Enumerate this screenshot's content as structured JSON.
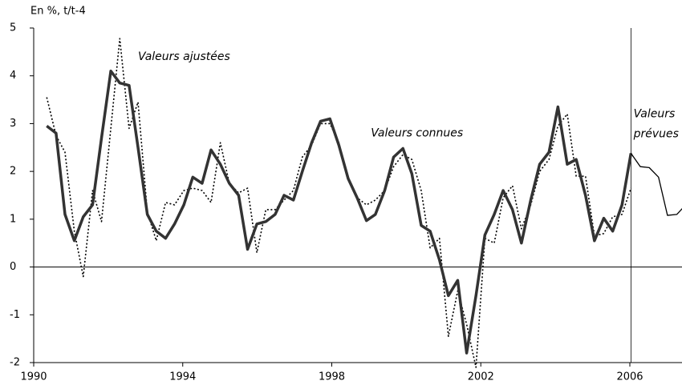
{
  "chart_data": {
    "type": "line",
    "y_label": "En %, t/t-4",
    "xlim": [
      1990,
      2007.4
    ],
    "xticks": [
      1990,
      1994,
      1998,
      2002,
      2006
    ],
    "ylim": [
      -2,
      5
    ],
    "yticks": [
      -2,
      -1,
      0,
      1,
      2,
      3,
      4,
      5
    ],
    "divider_x": 2006.03,
    "x": [
      1990.35,
      1990.6,
      1990.84,
      1991.09,
      1991.33,
      1991.58,
      1991.82,
      1992.07,
      1992.31,
      1992.56,
      1992.8,
      1993.05,
      1993.29,
      1993.54,
      1993.78,
      1994.03,
      1994.27,
      1994.52,
      1994.76,
      1995.01,
      1995.25,
      1995.5,
      1995.74,
      1995.99,
      1996.23,
      1996.48,
      1996.72,
      1996.97,
      1997.21,
      1997.46,
      1997.7,
      1997.95,
      1998.19,
      1998.44,
      1998.68,
      1998.93,
      1999.17,
      1999.42,
      1999.66,
      1999.91,
      2000.15,
      2000.4,
      2000.64,
      2000.89,
      2001.13,
      2001.38,
      2001.62,
      2001.87,
      2002.11,
      2002.36,
      2002.6,
      2002.85,
      2003.09,
      2003.34,
      2003.58,
      2003.83,
      2004.07,
      2004.32,
      2004.56,
      2004.81,
      2005.05,
      2005.3,
      2005.54,
      2005.79,
      2006.03
    ],
    "series": [
      {
        "color": "#000000",
        "style": "dotted",
        "width": 1.6,
        "values": [
          3.55,
          2.75,
          2.4,
          0.75,
          -0.2,
          1.6,
          0.95,
          2.9,
          4.78,
          2.9,
          3.45,
          1.15,
          0.55,
          1.35,
          1.3,
          1.6,
          1.65,
          1.6,
          1.35,
          2.6,
          1.75,
          1.55,
          1.65,
          0.3,
          1.2,
          1.2,
          1.4,
          1.6,
          2.3,
          2.55,
          3.0,
          3.0,
          2.6,
          1.85,
          1.45,
          1.3,
          1.4,
          1.6,
          2.1,
          2.35,
          2.25,
          1.6,
          0.4,
          0.6,
          -1.45,
          -0.5,
          -1.2,
          -2.1,
          0.6,
          0.5,
          1.45,
          1.7,
          0.8,
          1.3,
          2.0,
          2.25,
          2.95,
          3.2,
          1.9,
          1.9,
          0.65,
          0.7,
          1.05,
          1.1,
          1.65
        ]
      },
      {
        "color": "#333333",
        "style": "solid",
        "width": 3.5,
        "values": [
          2.95,
          2.8,
          1.1,
          0.55,
          1.05,
          1.3,
          2.7,
          4.1,
          3.85,
          3.8,
          2.5,
          1.1,
          0.75,
          0.6,
          0.9,
          1.3,
          1.88,
          1.75,
          2.45,
          2.15,
          1.75,
          1.5,
          0.37,
          0.9,
          0.95,
          1.1,
          1.5,
          1.4,
          2.0,
          2.6,
          3.05,
          3.1,
          2.55,
          1.85,
          1.45,
          0.97,
          1.1,
          1.6,
          2.3,
          2.48,
          1.95,
          0.87,
          0.75,
          0.15,
          -0.6,
          -0.28,
          -1.8,
          -0.6,
          0.67,
          1.1,
          1.6,
          1.2,
          0.5,
          1.4,
          2.15,
          2.4,
          3.35,
          2.15,
          2.25,
          1.5,
          0.55,
          1.02,
          0.75,
          1.3,
          2.38
        ]
      },
      {
        "color": "#000000",
        "style": "solid",
        "width": 1.3,
        "x": [
          2006.03,
          2006.28,
          2006.52,
          2006.77,
          2007.01,
          2007.26,
          2007.5
        ],
        "values": [
          2.38,
          2.1,
          2.08,
          1.88,
          1.08,
          1.1,
          1.3
        ]
      }
    ],
    "annotations": [
      {
        "lines": [
          "Valeurs ajustées"
        ],
        "x": 1992.8,
        "y": 4.4
      },
      {
        "lines": [
          "Valeurs connues"
        ],
        "x": 1999.05,
        "y": 2.8
      },
      {
        "lines": [
          "Valeurs",
          "prévues"
        ],
        "x": 2006.1,
        "y": 3.2
      }
    ]
  }
}
